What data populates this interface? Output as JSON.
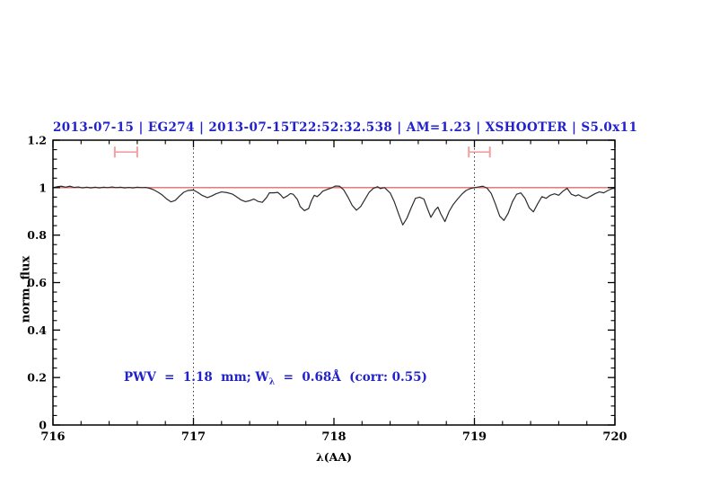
{
  "title": {
    "text": "2013-07-15 | EG274 | 2013-07-15T22:52:32.538 | AM=1.23 | XSHOOTER | S5.0x11"
  },
  "annotation": {
    "pre": "PWV  =  1.18  mm; W",
    "sub": "λ",
    "post": "  =  0.68Å  (corr: 0.55)"
  },
  "colors": {
    "accent_blue": "#2222cc",
    "continuum_red": "#e06c6c",
    "marker_pink": "#f0a0a0",
    "spectrum_line": "#2b2b2b",
    "dotted_line": "#3a3a3a",
    "frame_black": "#000000"
  },
  "chart_data": {
    "type": "line",
    "title": "2013-07-15 | EG274 | 2013-07-15T22:52:32.538 | AM=1.23 | XSHOOTER | S5.0x11",
    "xlabel": "λ(AA)",
    "ylabel": "norm. flux",
    "xlim": [
      716,
      720
    ],
    "ylim": [
      0,
      1.2
    ],
    "x_major_ticks": [
      716,
      717,
      718,
      719,
      720
    ],
    "x_tick_labels": [
      "716",
      "717",
      "718",
      "719",
      "720"
    ],
    "x_minor_step": 0.2,
    "y_major_ticks": [
      0,
      0.2,
      0.4,
      0.6,
      0.8,
      1,
      1.2
    ],
    "y_tick_labels": [
      "0",
      "0.2",
      "0.4",
      "0.6",
      "0.8",
      "1",
      "1.2"
    ],
    "y_minor_step": 0.04,
    "grid": "off",
    "dotted_vlines": [
      717,
      719
    ],
    "continuum_level": 1.0,
    "markers": [
      {
        "name": "telluric-window-marker",
        "x1": 716.44,
        "x2": 716.6,
        "y": 1.15,
        "cap_half_height": 0.023
      },
      {
        "name": "telluric-window-marker",
        "x1": 718.96,
        "x2": 719.11,
        "y": 1.15,
        "cap_half_height": 0.023
      }
    ],
    "series": [
      {
        "name": "spectrum",
        "points": [
          [
            716.0,
            1.0
          ],
          [
            716.03,
            1.004
          ],
          [
            716.06,
            1.006
          ],
          [
            716.09,
            1.002
          ],
          [
            716.12,
            1.006
          ],
          [
            716.15,
            1.001
          ],
          [
            716.18,
            1.003
          ],
          [
            716.21,
            0.999
          ],
          [
            716.24,
            1.002
          ],
          [
            716.27,
            0.999
          ],
          [
            716.3,
            1.002
          ],
          [
            716.33,
            0.999
          ],
          [
            716.36,
            1.002
          ],
          [
            716.39,
            1.0
          ],
          [
            716.42,
            1.003
          ],
          [
            716.45,
            1.0
          ],
          [
            716.48,
            1.002
          ],
          [
            716.51,
            0.999
          ],
          [
            716.54,
            1.001
          ],
          [
            716.57,
            0.999
          ],
          [
            716.6,
            1.002
          ],
          [
            716.63,
            1.0
          ],
          [
            716.66,
            1.001
          ],
          [
            716.69,
            0.997
          ],
          [
            716.72,
            0.99
          ],
          [
            716.75,
            0.98
          ],
          [
            716.78,
            0.968
          ],
          [
            716.81,
            0.952
          ],
          [
            716.84,
            0.94
          ],
          [
            716.87,
            0.946
          ],
          [
            716.9,
            0.964
          ],
          [
            716.93,
            0.98
          ],
          [
            716.96,
            0.988
          ],
          [
            717.0,
            0.99
          ],
          [
            717.03,
            0.98
          ],
          [
            717.06,
            0.968
          ],
          [
            717.1,
            0.958
          ],
          [
            717.13,
            0.965
          ],
          [
            717.16,
            0.974
          ],
          [
            717.2,
            0.982
          ],
          [
            717.24,
            0.979
          ],
          [
            717.28,
            0.972
          ],
          [
            717.31,
            0.96
          ],
          [
            717.34,
            0.948
          ],
          [
            717.37,
            0.941
          ],
          [
            717.4,
            0.945
          ],
          [
            717.43,
            0.952
          ],
          [
            717.46,
            0.942
          ],
          [
            717.49,
            0.938
          ],
          [
            717.52,
            0.958
          ],
          [
            717.54,
            0.978
          ],
          [
            717.57,
            0.978
          ],
          [
            717.6,
            0.98
          ],
          [
            717.62,
            0.97
          ],
          [
            717.64,
            0.956
          ],
          [
            717.67,
            0.966
          ],
          [
            717.69,
            0.975
          ],
          [
            717.71,
            0.972
          ],
          [
            717.74,
            0.95
          ],
          [
            717.76,
            0.92
          ],
          [
            717.79,
            0.903
          ],
          [
            717.82,
            0.912
          ],
          [
            717.84,
            0.945
          ],
          [
            717.86,
            0.968
          ],
          [
            717.88,
            0.962
          ],
          [
            717.9,
            0.972
          ],
          [
            717.92,
            0.985
          ],
          [
            717.95,
            0.992
          ],
          [
            717.98,
            0.998
          ],
          [
            718.01,
            1.007
          ],
          [
            718.04,
            1.006
          ],
          [
            718.07,
            0.99
          ],
          [
            718.1,
            0.96
          ],
          [
            718.13,
            0.925
          ],
          [
            718.16,
            0.905
          ],
          [
            718.19,
            0.92
          ],
          [
            718.22,
            0.95
          ],
          [
            718.25,
            0.98
          ],
          [
            718.28,
            0.997
          ],
          [
            718.31,
            1.004
          ],
          [
            718.33,
            0.996
          ],
          [
            718.36,
            1.0
          ],
          [
            718.4,
            0.978
          ],
          [
            718.43,
            0.94
          ],
          [
            718.46,
            0.89
          ],
          [
            718.49,
            0.843
          ],
          [
            718.52,
            0.872
          ],
          [
            718.55,
            0.915
          ],
          [
            718.58,
            0.955
          ],
          [
            718.61,
            0.96
          ],
          [
            718.64,
            0.952
          ],
          [
            718.67,
            0.905
          ],
          [
            718.69,
            0.875
          ],
          [
            718.72,
            0.905
          ],
          [
            718.74,
            0.918
          ],
          [
            718.76,
            0.89
          ],
          [
            718.79,
            0.857
          ],
          [
            718.82,
            0.9
          ],
          [
            718.85,
            0.93
          ],
          [
            718.88,
            0.952
          ],
          [
            718.91,
            0.972
          ],
          [
            718.94,
            0.988
          ],
          [
            718.97,
            0.996
          ],
          [
            719.0,
            1.0
          ],
          [
            719.03,
            1.003
          ],
          [
            719.06,
            1.006
          ],
          [
            719.09,
            0.998
          ],
          [
            719.12,
            0.975
          ],
          [
            719.15,
            0.93
          ],
          [
            719.18,
            0.88
          ],
          [
            719.21,
            0.862
          ],
          [
            719.24,
            0.892
          ],
          [
            719.27,
            0.94
          ],
          [
            719.3,
            0.972
          ],
          [
            719.33,
            0.978
          ],
          [
            719.36,
            0.955
          ],
          [
            719.39,
            0.915
          ],
          [
            719.42,
            0.898
          ],
          [
            719.45,
            0.932
          ],
          [
            719.48,
            0.962
          ],
          [
            719.51,
            0.955
          ],
          [
            719.54,
            0.968
          ],
          [
            719.57,
            0.974
          ],
          [
            719.6,
            0.968
          ],
          [
            719.63,
            0.985
          ],
          [
            719.66,
            0.997
          ],
          [
            719.69,
            0.972
          ],
          [
            719.72,
            0.965
          ],
          [
            719.74,
            0.97
          ],
          [
            719.77,
            0.96
          ],
          [
            719.8,
            0.955
          ],
          [
            719.83,
            0.965
          ],
          [
            719.86,
            0.975
          ],
          [
            719.89,
            0.982
          ],
          [
            719.92,
            0.978
          ],
          [
            719.95,
            0.988
          ],
          [
            719.98,
            0.996
          ],
          [
            720.0,
            0.998
          ]
        ]
      }
    ]
  }
}
